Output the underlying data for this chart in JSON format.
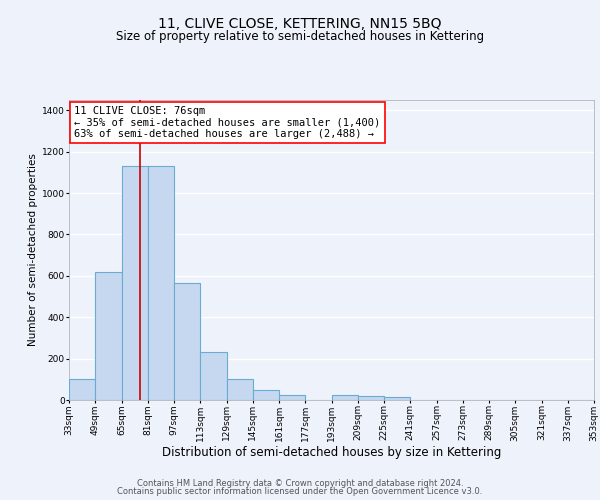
{
  "title": "11, CLIVE CLOSE, KETTERING, NN15 5BQ",
  "subtitle": "Size of property relative to semi-detached houses in Kettering",
  "bar_values": [
    100,
    620,
    1130,
    1130,
    565,
    230,
    100,
    50,
    25,
    0,
    25,
    20,
    15,
    0,
    0,
    0,
    0,
    0,
    0,
    0
  ],
  "bin_edges": [
    33,
    49,
    65,
    81,
    97,
    113,
    129,
    145,
    161,
    177,
    193,
    209,
    225,
    241,
    257,
    273,
    289,
    305,
    321,
    337,
    353
  ],
  "bin_labels": [
    "33sqm",
    "49sqm",
    "65sqm",
    "81sqm",
    "97sqm",
    "113sqm",
    "129sqm",
    "145sqm",
    "161sqm",
    "177sqm",
    "193sqm",
    "209sqm",
    "225sqm",
    "241sqm",
    "257sqm",
    "273sqm",
    "289sqm",
    "305sqm",
    "321sqm",
    "337sqm",
    "353sqm"
  ],
  "bar_color": "#c5d8f0",
  "bar_edge_color": "#6aabd2",
  "bar_edge_width": 0.8,
  "red_line_x": 76,
  "red_line_color": "#cc0000",
  "annotation_line1": "11 CLIVE CLOSE: 76sqm",
  "annotation_line2": "← 35% of semi-detached houses are smaller (1,400)",
  "annotation_line3": "63% of semi-detached houses are larger (2,488) →",
  "ylabel": "Number of semi-detached properties",
  "xlabel": "Distribution of semi-detached houses by size in Kettering",
  "ylim": [
    0,
    1450
  ],
  "yticks": [
    0,
    200,
    400,
    600,
    800,
    1000,
    1200,
    1400
  ],
  "background_color": "#eef2fb",
  "grid_color": "#ffffff",
  "footer_line1": "Contains HM Land Registry data © Crown copyright and database right 2024.",
  "footer_line2": "Contains public sector information licensed under the Open Government Licence v3.0.",
  "title_fontsize": 10,
  "subtitle_fontsize": 8.5,
  "xlabel_fontsize": 8.5,
  "ylabel_fontsize": 7.5,
  "tick_fontsize": 6.5,
  "annotation_fontsize": 7.5,
  "footer_fontsize": 6.0
}
